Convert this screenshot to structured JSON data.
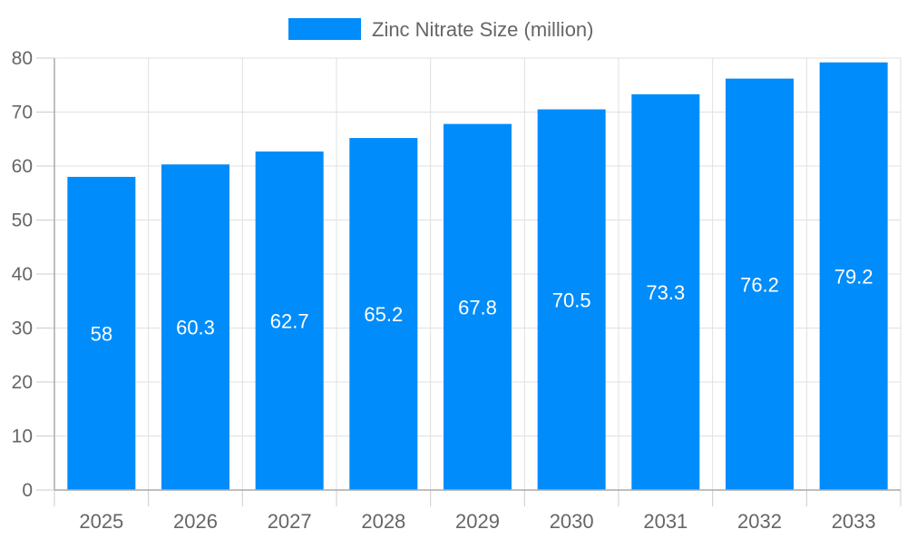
{
  "chart_data": {
    "type": "bar",
    "title": "",
    "xlabel": "",
    "ylabel": "",
    "categories": [
      "2025",
      "2026",
      "2027",
      "2028",
      "2029",
      "2030",
      "2031",
      "2032",
      "2033"
    ],
    "series": [
      {
        "name": "Zinc Nitrate Size (million)",
        "values": [
          58,
          60.3,
          62.7,
          65.2,
          67.8,
          70.5,
          73.3,
          76.2,
          79.2
        ],
        "color": "#008cfa"
      }
    ],
    "data_labels": [
      "58",
      "60.3",
      "62.7",
      "65.2",
      "67.8",
      "70.5",
      "73.3",
      "76.2",
      "79.2"
    ],
    "ylim": [
      0,
      80
    ],
    "yticks": [
      "0",
      "10",
      "20",
      "30",
      "40",
      "50",
      "60",
      "70",
      "80"
    ],
    "grid": true,
    "legend_position": "top"
  }
}
